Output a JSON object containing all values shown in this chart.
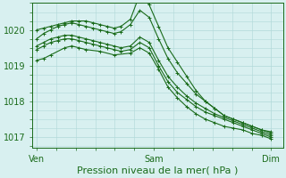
{
  "bg_color": "#d8f0f0",
  "grid_color": "#b0d8d8",
  "line_color": "#1a6b1a",
  "xlabel": "Pression niveau de la mer( hPa )",
  "xlabel_fontsize": 8,
  "tick_fontsize": 7,
  "yticks": [
    1017,
    1018,
    1019,
    1020
  ],
  "xtick_labels": [
    "Ven",
    "Sam",
    "Dim"
  ],
  "xtick_positions": [
    0.0,
    0.5,
    1.0
  ],
  "xlim": [
    -0.02,
    1.05
  ],
  "ylim": [
    1016.7,
    1020.75
  ],
  "series": [
    {
      "x": [
        0.0,
        0.03,
        0.06,
        0.09,
        0.12,
        0.15,
        0.18,
        0.21,
        0.24,
        0.27,
        0.3,
        0.33,
        0.36,
        0.4,
        0.44,
        0.48,
        0.52,
        0.56,
        0.6,
        0.64,
        0.68,
        0.72,
        0.76,
        0.8,
        0.84,
        0.88,
        0.92,
        0.96,
        1.0
      ],
      "y": [
        1020.0,
        1020.05,
        1020.1,
        1020.15,
        1020.2,
        1020.25,
        1020.25,
        1020.25,
        1020.2,
        1020.15,
        1020.1,
        1020.05,
        1020.1,
        1020.3,
        1021.0,
        1020.7,
        1020.1,
        1019.5,
        1019.1,
        1018.7,
        1018.3,
        1018.0,
        1017.8,
        1017.6,
        1017.5,
        1017.4,
        1017.3,
        1017.2,
        1017.15
      ]
    },
    {
      "x": [
        0.0,
        0.03,
        0.06,
        0.09,
        0.12,
        0.15,
        0.18,
        0.21,
        0.24,
        0.27,
        0.3,
        0.33,
        0.36,
        0.4,
        0.44,
        0.48,
        0.52,
        0.56,
        0.6,
        0.64,
        0.68,
        0.72,
        0.76,
        0.8,
        0.84,
        0.88,
        0.92,
        0.96,
        1.0
      ],
      "y": [
        1019.75,
        1019.9,
        1020.0,
        1020.1,
        1020.15,
        1020.2,
        1020.15,
        1020.1,
        1020.05,
        1020.0,
        1019.95,
        1019.9,
        1019.95,
        1020.15,
        1020.55,
        1020.35,
        1019.75,
        1019.2,
        1018.8,
        1018.5,
        1018.2,
        1018.0,
        1017.8,
        1017.6,
        1017.5,
        1017.4,
        1017.3,
        1017.2,
        1017.1
      ]
    },
    {
      "x": [
        0.0,
        0.03,
        0.06,
        0.09,
        0.12,
        0.15,
        0.18,
        0.21,
        0.24,
        0.27,
        0.3,
        0.33,
        0.36,
        0.4,
        0.44,
        0.48,
        0.52,
        0.56,
        0.6,
        0.64,
        0.68,
        0.72,
        0.76,
        0.8,
        0.84,
        0.88,
        0.92,
        0.96,
        1.0
      ],
      "y": [
        1019.55,
        1019.65,
        1019.75,
        1019.8,
        1019.85,
        1019.85,
        1019.8,
        1019.75,
        1019.7,
        1019.65,
        1019.6,
        1019.55,
        1019.5,
        1019.55,
        1019.8,
        1019.65,
        1019.15,
        1018.7,
        1018.4,
        1018.15,
        1017.95,
        1017.8,
        1017.65,
        1017.55,
        1017.45,
        1017.35,
        1017.25,
        1017.15,
        1017.05
      ]
    },
    {
      "x": [
        0.0,
        0.03,
        0.06,
        0.09,
        0.12,
        0.15,
        0.18,
        0.21,
        0.24,
        0.27,
        0.3,
        0.33,
        0.36,
        0.4,
        0.44,
        0.48,
        0.52,
        0.56,
        0.6,
        0.64,
        0.68,
        0.72,
        0.76,
        0.8,
        0.84,
        0.88,
        0.92,
        0.96,
        1.0
      ],
      "y": [
        1019.45,
        1019.55,
        1019.65,
        1019.7,
        1019.75,
        1019.75,
        1019.7,
        1019.65,
        1019.6,
        1019.55,
        1019.5,
        1019.45,
        1019.4,
        1019.45,
        1019.65,
        1019.5,
        1019.0,
        1018.55,
        1018.25,
        1018.05,
        1017.85,
        1017.7,
        1017.6,
        1017.5,
        1017.4,
        1017.3,
        1017.2,
        1017.1,
        1017.0
      ]
    },
    {
      "x": [
        0.0,
        0.03,
        0.06,
        0.12,
        0.15,
        0.18,
        0.21,
        0.27,
        0.33,
        0.4,
        0.44,
        0.48,
        0.52,
        0.56,
        0.6,
        0.64,
        0.68,
        0.72,
        0.76,
        0.8,
        0.84,
        0.88,
        0.92,
        0.96,
        1.0
      ],
      "y": [
        1019.15,
        1019.2,
        1019.3,
        1019.5,
        1019.55,
        1019.5,
        1019.45,
        1019.4,
        1019.3,
        1019.35,
        1019.5,
        1019.35,
        1018.9,
        1018.4,
        1018.1,
        1017.85,
        1017.65,
        1017.5,
        1017.4,
        1017.3,
        1017.25,
        1017.2,
        1017.1,
        1017.05,
        1016.95
      ]
    }
  ],
  "marker": "+",
  "markersize": 3,
  "linewidth": 0.8
}
